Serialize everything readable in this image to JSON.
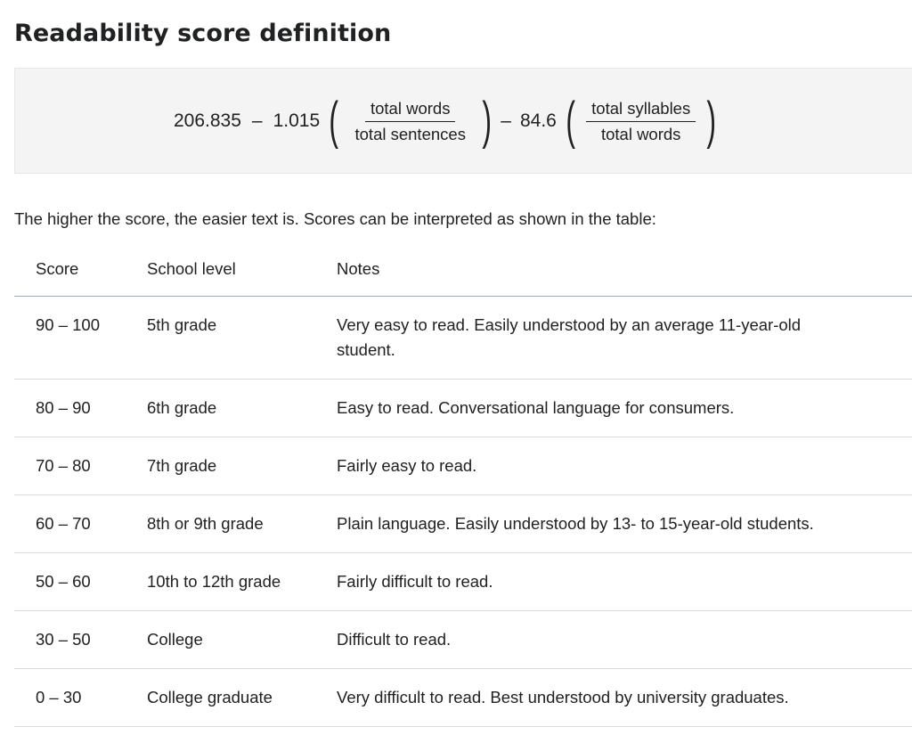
{
  "heading": "Readability score definition",
  "formula": {
    "constant": "206.835",
    "minus1": "–",
    "coef1": "1.015",
    "frac1_num": "total words",
    "frac1_den": "total sentences",
    "minus2": "–",
    "coef2": "84.6",
    "frac2_num": "total syllables",
    "frac2_den": "total words",
    "paren_open": "(",
    "paren_close": ")"
  },
  "intro": "The higher the score, the easier text is. Scores can be interpreted as shown in the table:",
  "table": {
    "headers": [
      "Score",
      "School level",
      "Notes"
    ],
    "rows": [
      {
        "score": "90 – 100",
        "level": "5th grade",
        "notes": "Very easy to read. Easily understood by an average 11-year-old student."
      },
      {
        "score": "80 – 90",
        "level": "6th grade",
        "notes": "Easy to read. Conversational language for consumers."
      },
      {
        "score": "70 – 80",
        "level": "7th grade",
        "notes": "Fairly easy to read."
      },
      {
        "score": "60 – 70",
        "level": "8th or 9th grade",
        "notes": "Plain language. Easily understood by 13- to 15-year-old students."
      },
      {
        "score": "50 – 60",
        "level": "10th to 12th grade",
        "notes": "Fairly difficult to read."
      },
      {
        "score": "30 – 50",
        "level": "College",
        "notes": "Difficult to read."
      },
      {
        "score": "0 – 30",
        "level": "College graduate",
        "notes": "Very difficult to read. Best understood by university graduates."
      }
    ]
  }
}
